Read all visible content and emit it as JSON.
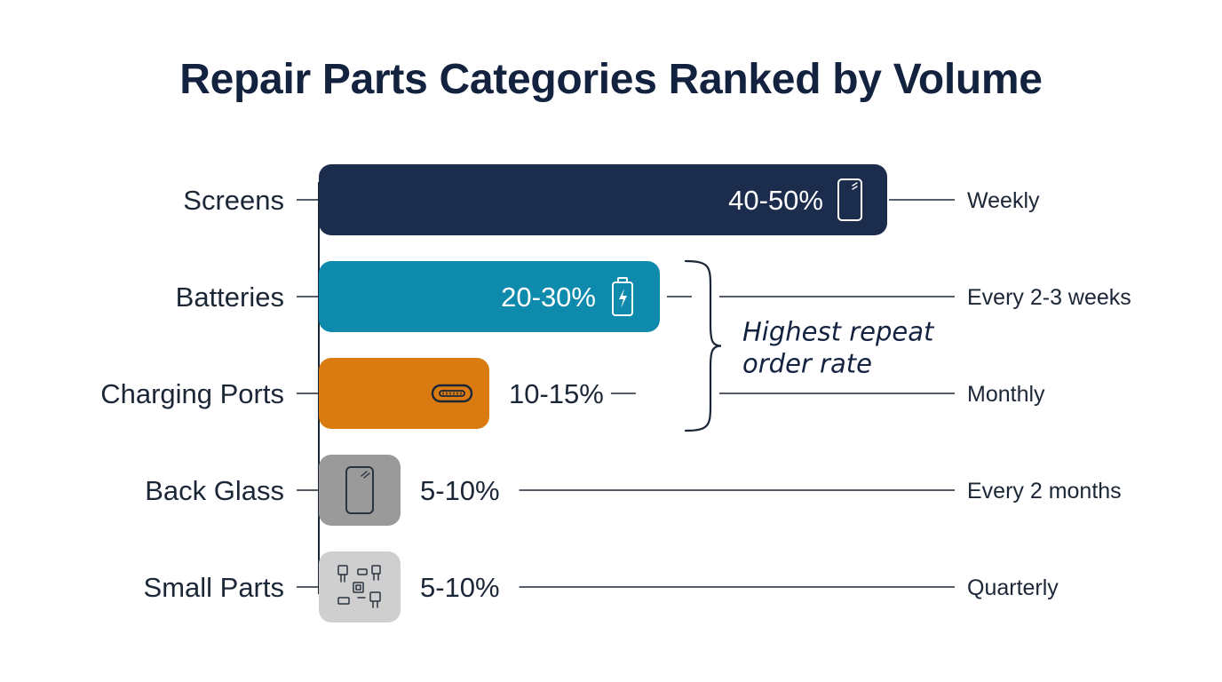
{
  "chart_data": {
    "type": "bar",
    "orientation": "horizontal",
    "title": "Repair Parts Categories Ranked by Volume",
    "categories": [
      "Screens",
      "Batteries",
      "Charging Ports",
      "Back Glass",
      "Small Parts"
    ],
    "values": [
      50,
      30,
      15,
      5,
      5
    ],
    "value_labels": [
      "40-50%",
      "20-30%",
      "10-15%",
      "5-10%",
      "5-10%"
    ],
    "order_frequency": [
      "Weekly",
      "Every 2-3 weeks",
      "Monthly",
      "Every 2 months",
      "Quarterly"
    ],
    "bar_colors": [
      "#1c2c4c",
      "#0e8aad",
      "#d97b10",
      "#9a9a9a",
      "#cfcfcf"
    ],
    "icons": [
      "smartphone-icon",
      "battery-icon",
      "usb-port-icon",
      "phone-back-icon",
      "components-icon"
    ],
    "annotation": {
      "text": "Highest repeat order rate",
      "lines": [
        "Highest repeat",
        "order rate"
      ],
      "spans": [
        "Batteries",
        "Charging Ports"
      ]
    },
    "xlim": [
      0,
      50
    ],
    "grid": false,
    "legend": "none"
  }
}
